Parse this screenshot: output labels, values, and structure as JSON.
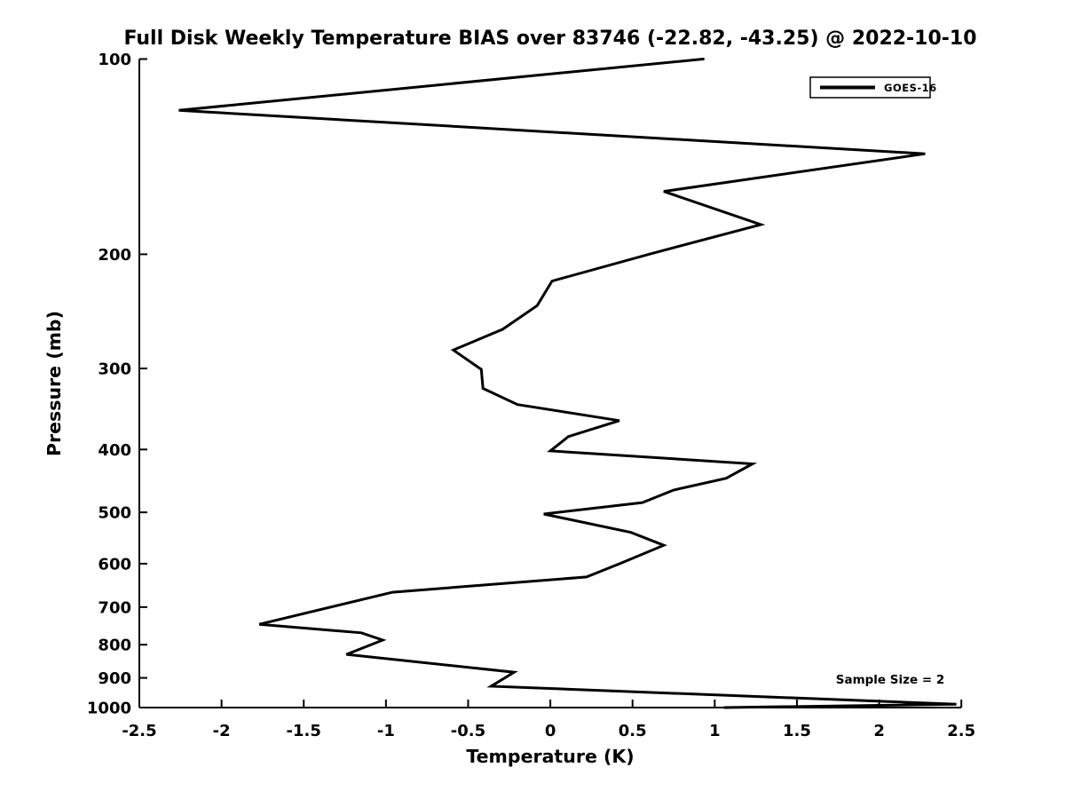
{
  "title": "Full Disk Weekly Temperature BIAS over 83746 (-22.82, -43.25) @ 2022-10-10",
  "colors": {
    "line": "#000000",
    "background": "#ffffff",
    "text": "#000000"
  },
  "chart_data": {
    "type": "line",
    "title": "Full Disk Weekly Temperature BIAS over 83746 (-22.82, -43.25) @ 2022-10-10",
    "xlabel": "Temperature (K)",
    "ylabel": "Pressure (mb)",
    "xlim": [
      -2.5,
      2.5
    ],
    "ylim": [
      100,
      1000
    ],
    "yscale": "log",
    "y_inverted": true,
    "grid": false,
    "x_ticks": [
      -2.5,
      -2,
      -1.5,
      -1,
      -0.5,
      0,
      0.5,
      1,
      1.5,
      2,
      2.5
    ],
    "x_tick_labels": [
      "-2.5",
      "-2",
      "-1.5",
      "-1",
      "-0.5",
      "0",
      "0.5",
      "1",
      "1.5",
      "2",
      "2.5"
    ],
    "y_ticks": [
      100,
      200,
      300,
      400,
      500,
      600,
      700,
      800,
      900,
      1000
    ],
    "y_tick_labels": [
      "100",
      "200",
      "300",
      "400",
      "500",
      "600",
      "700",
      "800",
      "900",
      "1000"
    ],
    "legend": {
      "position": "top-right",
      "entries": [
        "GOES-16"
      ]
    },
    "annotations": [
      {
        "text": "Sample Size = 2",
        "near_temperature": 2.07,
        "near_pressure": 905
      }
    ],
    "series": [
      {
        "name": "GOES-16",
        "color": "#000000",
        "line_width": 3,
        "points_format": [
          "temperature_bias_K",
          "pressure_mb"
        ],
        "points": [
          [
            0.93,
            100
          ],
          [
            -2.26,
            120
          ],
          [
            2.28,
            140
          ],
          [
            0.69,
            160
          ],
          [
            1.28,
            180
          ],
          [
            0.6,
            200
          ],
          [
            0.01,
            220
          ],
          [
            -0.08,
            240
          ],
          [
            -0.29,
            261
          ],
          [
            -0.59,
            281
          ],
          [
            -0.42,
            301
          ],
          [
            -0.41,
            322
          ],
          [
            -0.2,
            341
          ],
          [
            0.42,
            361
          ],
          [
            0.11,
            382
          ],
          [
            0.0,
            402
          ],
          [
            1.23,
            421
          ],
          [
            1.07,
            443
          ],
          [
            0.75,
            462
          ],
          [
            0.56,
            483
          ],
          [
            -0.04,
            503
          ],
          [
            0.49,
            537
          ],
          [
            0.69,
            562
          ],
          [
            0.45,
            596
          ],
          [
            0.22,
            629
          ],
          [
            -0.96,
            664
          ],
          [
            -1.77,
            744
          ],
          [
            -1.15,
            767
          ],
          [
            -1.02,
            787
          ],
          [
            -1.24,
            828
          ],
          [
            -0.22,
            882
          ],
          [
            -0.36,
            927
          ],
          [
            2.47,
            988
          ],
          [
            1.06,
            1000
          ]
        ]
      }
    ]
  }
}
